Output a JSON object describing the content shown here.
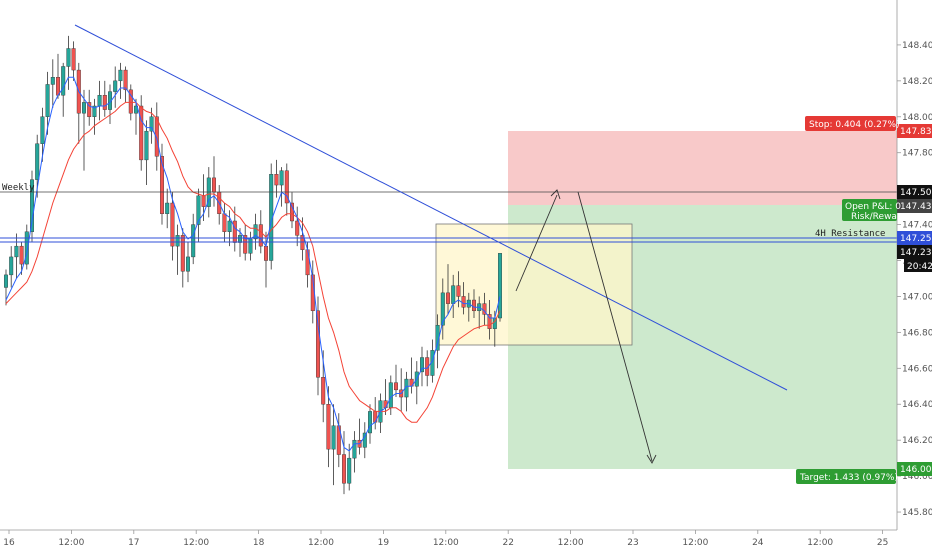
{
  "chart_data": {
    "type": "candlestick",
    "ylim": [
      145.7,
      148.65
    ],
    "y_ticks": [
      145.8,
      146.0,
      146.2,
      146.4,
      146.6,
      146.8,
      147.0,
      147.2,
      147.4,
      147.6,
      147.8,
      148.0,
      148.2,
      148.4
    ],
    "y_tick_labels": [
      "145.800",
      "146.000",
      "146.200",
      "146.400",
      "146.600",
      "146.800",
      "147.000",
      "147.200",
      "147.400",
      "147.600",
      "147.800",
      "148.000",
      "148.200",
      "148.400"
    ],
    "x_ticks": [
      {
        "label": "16",
        "i": 0
      },
      {
        "label": "12:00",
        "i": 12
      },
      {
        "label": "17",
        "i": 24
      },
      {
        "label": "12:00",
        "i": 36
      },
      {
        "label": "18",
        "i": 48
      },
      {
        "label": "12:00",
        "i": 60
      },
      {
        "label": "19",
        "i": 72
      },
      {
        "label": "12:00",
        "i": 84
      },
      {
        "label": "22",
        "i": 96
      },
      {
        "label": "12:00",
        "i": 108
      },
      {
        "label": "23",
        "i": 120
      },
      {
        "label": "12:00",
        "i": 132
      },
      {
        "label": "24",
        "i": 144
      },
      {
        "label": "12:00",
        "i": 156
      },
      {
        "label": "25",
        "i": 168
      }
    ],
    "candles": [
      [
        147.05,
        147.15,
        146.95,
        147.12
      ],
      [
        147.12,
        147.28,
        147.05,
        147.22
      ],
      [
        147.22,
        147.35,
        147.1,
        147.28
      ],
      [
        147.28,
        147.3,
        147.12,
        147.18
      ],
      [
        147.18,
        147.4,
        147.15,
        147.36
      ],
      [
        147.36,
        147.7,
        147.3,
        147.65
      ],
      [
        147.65,
        147.9,
        147.55,
        147.85
      ],
      [
        147.85,
        148.05,
        147.75,
        148.0
      ],
      [
        148.0,
        148.25,
        147.9,
        148.18
      ],
      [
        148.18,
        148.32,
        148.05,
        148.22
      ],
      [
        148.22,
        148.35,
        148.1,
        148.12
      ],
      [
        148.12,
        148.3,
        148.0,
        148.28
      ],
      [
        148.28,
        148.45,
        148.15,
        148.38
      ],
      [
        148.38,
        148.42,
        148.2,
        148.26
      ],
      [
        148.26,
        148.3,
        147.85,
        148.02
      ],
      [
        148.02,
        148.15,
        147.7,
        148.08
      ],
      [
        148.08,
        148.15,
        147.95,
        148.0
      ],
      [
        148.0,
        148.1,
        147.9,
        148.06
      ],
      [
        148.06,
        148.2,
        147.98,
        148.12
      ],
      [
        148.12,
        148.2,
        148.0,
        148.04
      ],
      [
        148.04,
        148.18,
        147.96,
        148.14
      ],
      [
        148.14,
        148.28,
        148.05,
        148.2
      ],
      [
        148.2,
        148.3,
        148.1,
        148.26
      ],
      [
        148.26,
        148.28,
        148.08,
        148.15
      ],
      [
        148.15,
        148.18,
        147.98,
        148.02
      ],
      [
        148.02,
        148.1,
        147.9,
        148.06
      ],
      [
        148.06,
        148.12,
        147.7,
        147.76
      ],
      [
        147.76,
        147.98,
        147.62,
        147.92
      ],
      [
        147.92,
        148.05,
        147.85,
        148.0
      ],
      [
        148.0,
        148.08,
        147.7,
        147.78
      ],
      [
        147.78,
        147.85,
        147.4,
        147.46
      ],
      [
        147.46,
        147.6,
        147.38,
        147.52
      ],
      [
        147.52,
        147.58,
        147.2,
        147.28
      ],
      [
        147.28,
        147.4,
        147.12,
        147.34
      ],
      [
        147.34,
        147.38,
        147.05,
        147.14
      ],
      [
        147.14,
        147.3,
        147.08,
        147.22
      ],
      [
        147.22,
        147.46,
        147.18,
        147.4
      ],
      [
        147.4,
        147.6,
        147.3,
        147.56
      ],
      [
        147.56,
        147.68,
        147.42,
        147.5
      ],
      [
        147.5,
        147.72,
        147.44,
        147.66
      ],
      [
        147.66,
        147.78,
        147.5,
        147.58
      ],
      [
        147.58,
        147.62,
        147.4,
        147.46
      ],
      [
        147.46,
        147.52,
        147.3,
        147.36
      ],
      [
        147.36,
        147.48,
        147.28,
        147.42
      ],
      [
        147.42,
        147.5,
        147.25,
        147.3
      ],
      [
        147.3,
        147.38,
        147.22,
        147.34
      ],
      [
        147.34,
        147.4,
        147.2,
        147.24
      ],
      [
        147.24,
        147.36,
        147.2,
        147.32
      ],
      [
        147.32,
        147.46,
        147.26,
        147.4
      ],
      [
        147.4,
        147.48,
        147.24,
        147.28
      ],
      [
        147.28,
        147.36,
        147.05,
        147.2
      ],
      [
        147.2,
        147.74,
        147.15,
        147.68
      ],
      [
        147.68,
        147.76,
        147.55,
        147.62
      ],
      [
        147.62,
        147.72,
        147.5,
        147.7
      ],
      [
        147.7,
        147.74,
        147.45,
        147.52
      ],
      [
        147.52,
        147.58,
        147.38,
        147.42
      ],
      [
        147.42,
        147.5,
        147.28,
        147.34
      ],
      [
        147.34,
        147.44,
        147.2,
        147.26
      ],
      [
        147.26,
        147.3,
        147.05,
        147.12
      ],
      [
        147.12,
        147.2,
        146.85,
        146.92
      ],
      [
        146.92,
        147.0,
        146.45,
        146.55
      ],
      [
        146.55,
        146.7,
        146.3,
        146.4
      ],
      [
        146.4,
        146.5,
        146.05,
        146.15
      ],
      [
        146.15,
        146.4,
        145.95,
        146.28
      ],
      [
        146.28,
        146.35,
        146.05,
        146.12
      ],
      [
        146.12,
        146.25,
        145.9,
        145.96
      ],
      [
        145.96,
        146.18,
        145.92,
        146.1
      ],
      [
        146.1,
        146.25,
        146.02,
        146.2
      ],
      [
        146.2,
        146.32,
        146.12,
        146.16
      ],
      [
        146.16,
        146.3,
        146.1,
        146.24
      ],
      [
        146.24,
        146.4,
        146.18,
        146.36
      ],
      [
        146.36,
        146.44,
        146.26,
        146.3
      ],
      [
        146.3,
        146.46,
        146.24,
        146.42
      ],
      [
        146.42,
        146.54,
        146.34,
        146.38
      ],
      [
        146.38,
        146.56,
        146.34,
        146.52
      ],
      [
        146.52,
        146.62,
        146.44,
        146.48
      ],
      [
        146.48,
        146.6,
        146.36,
        146.44
      ],
      [
        146.44,
        146.58,
        146.36,
        146.54
      ],
      [
        146.54,
        146.66,
        146.46,
        146.5
      ],
      [
        146.5,
        146.64,
        146.4,
        146.58
      ],
      [
        146.58,
        146.72,
        146.5,
        146.66
      ],
      [
        146.66,
        146.7,
        146.5,
        146.56
      ],
      [
        146.56,
        146.76,
        146.52,
        146.7
      ],
      [
        146.7,
        146.9,
        146.6,
        146.84
      ],
      [
        146.84,
        147.1,
        146.76,
        147.02
      ],
      [
        147.02,
        147.18,
        146.9,
        146.96
      ],
      [
        146.96,
        147.12,
        146.88,
        147.06
      ],
      [
        147.06,
        147.14,
        146.94,
        147.0
      ],
      [
        147.0,
        147.08,
        146.9,
        146.94
      ],
      [
        146.94,
        147.02,
        146.86,
        146.98
      ],
      [
        146.98,
        147.04,
        146.88,
        146.92
      ],
      [
        146.92,
        147.0,
        146.82,
        146.96
      ],
      [
        146.96,
        147.02,
        146.84,
        146.9
      ],
      [
        146.9,
        146.98,
        146.76,
        146.82
      ],
      [
        146.82,
        146.92,
        146.72,
        146.88
      ],
      [
        146.88,
        147.24,
        146.86,
        147.24
      ]
    ],
    "blue_ma": [
      146.98,
      147.04,
      147.1,
      147.14,
      147.24,
      147.42,
      147.6,
      147.78,
      147.94,
      148.06,
      148.12,
      148.16,
      148.22,
      148.22,
      148.14,
      148.1,
      148.06,
      148.05,
      148.06,
      148.06,
      148.08,
      148.12,
      148.16,
      148.16,
      148.12,
      148.08,
      147.98,
      147.94,
      147.94,
      147.88,
      147.74,
      147.66,
      147.54,
      147.46,
      147.36,
      147.32,
      147.34,
      147.42,
      147.46,
      147.54,
      147.56,
      147.52,
      147.46,
      147.44,
      147.38,
      147.36,
      147.32,
      147.32,
      147.34,
      147.32,
      147.28,
      147.42,
      147.5,
      147.58,
      147.56,
      147.5,
      147.44,
      147.36,
      147.26,
      147.1,
      146.84,
      146.64,
      146.44,
      146.38,
      146.28,
      146.16,
      146.14,
      146.18,
      146.18,
      146.22,
      146.28,
      146.3,
      146.36,
      146.38,
      146.44,
      146.46,
      146.46,
      146.5,
      146.5,
      146.54,
      146.6,
      146.6,
      146.64,
      146.74,
      146.86,
      146.9,
      146.96,
      146.98,
      146.96,
      146.96,
      146.94,
      146.94,
      146.92,
      146.88,
      146.88,
      147.0
    ],
    "red_ma": [
      146.96,
      146.99,
      147.02,
      147.05,
      147.08,
      147.14,
      147.22,
      147.32,
      147.42,
      147.52,
      147.6,
      147.68,
      147.76,
      147.82,
      147.86,
      147.9,
      147.92,
      147.95,
      147.97,
      147.99,
      148.01,
      148.03,
      148.06,
      148.08,
      148.08,
      148.08,
      148.05,
      148.03,
      148.02,
      147.99,
      147.93,
      147.88,
      147.81,
      147.75,
      147.67,
      147.61,
      147.58,
      147.57,
      147.56,
      147.57,
      147.57,
      147.55,
      147.52,
      147.5,
      147.46,
      147.44,
      147.4,
      147.38,
      147.38,
      147.36,
      147.33,
      147.37,
      147.4,
      147.44,
      147.46,
      147.46,
      147.44,
      147.41,
      147.36,
      147.28,
      147.14,
      147.0,
      146.88,
      146.8,
      146.7,
      146.58,
      146.5,
      146.46,
      146.42,
      146.4,
      146.38,
      146.36,
      146.36,
      146.36,
      146.38,
      146.38,
      146.36,
      146.32,
      146.3,
      146.3,
      146.34,
      146.38,
      146.44,
      146.52,
      146.6,
      146.66,
      146.72,
      146.76,
      146.78,
      146.8,
      146.82,
      146.83,
      146.84,
      146.84,
      146.86,
      146.92
    ]
  },
  "colors": {
    "up": "#26a69a",
    "down": "#ef5350",
    "blue_ma": "#2962ff",
    "red_ma": "#f44336",
    "trendline": "#2f4fd8",
    "stop_zone": "#f8c9c9",
    "target_zone": "#cde9cd",
    "highlight": "#fff6c9",
    "stop_tag": "#e53935",
    "target_tag": "#2e9d33"
  },
  "levels": {
    "weekly": {
      "label": "Weekly",
      "price": 147.5
    },
    "resistance": {
      "label": "4H Resistance",
      "price": 147.25
    }
  },
  "position": {
    "entry": 147.433,
    "stop": 147.837,
    "target": 146.0,
    "stop_text": "Stop: 0.404 (0.27%)",
    "target_text": "Target: 1.433 (0.97%)",
    "pnl_text": "Open P&L: 0",
    "rr_text": "Risk/Rewa"
  },
  "price_tags": {
    "stop": "147.837",
    "weekly": "147.500",
    "entry": "147.433",
    "resistance": "147.250",
    "last": "147.235",
    "countdown": "20:42",
    "target": "146.000"
  }
}
